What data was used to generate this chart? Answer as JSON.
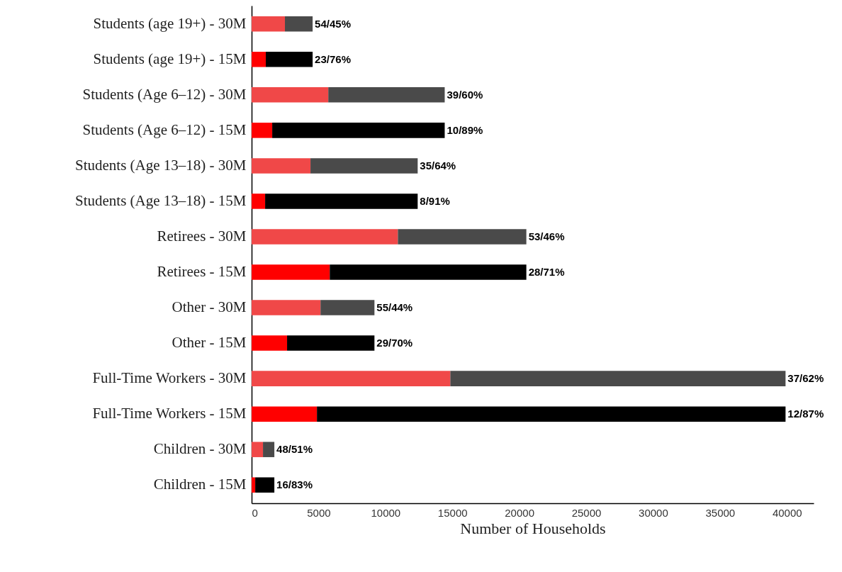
{
  "chart_data": {
    "type": "bar",
    "orientation": "horizontal",
    "stacked": true,
    "xlabel": "Number of Households",
    "categories": [
      "Students (age 19+) - 30M",
      "Students (age 19+) - 15M",
      "Students (Age 6–12) - 30M",
      "Students (Age 6–12) - 15M",
      "Students (Age 13–18) - 30M",
      "Students (Age 13–18) - 15M",
      "Retirees - 30M",
      "Retirees - 15M",
      "Other - 30M",
      "Other - 15M",
      "Full-Time Workers - 30M",
      "Full-Time Workers - 15M",
      "Children - 30M",
      "Children - 15M"
    ],
    "series": [
      {
        "colors": [
          "#f04848",
          "#ff0000",
          "#f04848",
          "#ff0000",
          "#f04848",
          "#ff0000",
          "#f04848",
          "#ff0000",
          "#f04848",
          "#ff0000",
          "#f04848",
          "#ff0000",
          "#f04848",
          "#ff0000"
        ],
        "values": [
          2490,
          1060,
          5730,
          1540,
          4400,
          1010,
          10930,
          5840,
          5150,
          2650,
          14850,
          4880,
          850,
          270
        ]
      },
      {
        "colors": [
          "#4a4a4a",
          "#000000",
          "#4a4a4a",
          "#000000",
          "#4a4a4a",
          "#000000",
          "#4a4a4a",
          "#000000",
          "#4a4a4a",
          "#000000",
          "#4a4a4a",
          "#000000",
          "#4a4a4a",
          "#000000"
        ],
        "values": [
          2070,
          3500,
          8700,
          12890,
          8010,
          11400,
          9600,
          14690,
          4030,
          6530,
          25050,
          35020,
          850,
          1430
        ]
      }
    ],
    "totals": [
      "54/45%",
      "23/76%",
      "39/60%",
      "10/89%",
      "35/64%",
      "8/91%",
      "53/46%",
      "28/71%",
      "55/44%",
      "29/70%",
      "37/62%",
      "12/87%",
      "48/51%",
      "16/83%"
    ],
    "xlim": [
      0,
      42000
    ],
    "xticks": [
      0,
      5000,
      10000,
      15000,
      20000,
      25000,
      30000,
      35000,
      40000
    ],
    "grid": false
  }
}
